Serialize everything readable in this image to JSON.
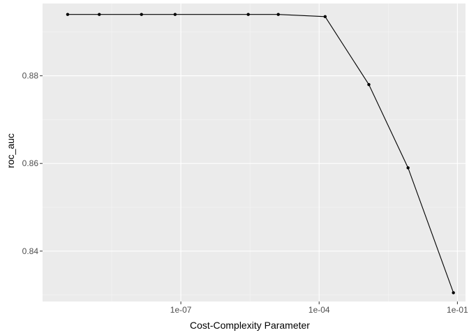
{
  "chart_data": {
    "type": "line",
    "xlabel": "Cost-Complexity Parameter",
    "ylabel": "roc_auc",
    "x_scale": "log10",
    "xlim": [
      1e-10,
      0.15
    ],
    "ylim": [
      0.8285,
      0.8965
    ],
    "x_ticks": [
      {
        "value": 1e-07,
        "label": "1e-07"
      },
      {
        "value": 0.0001,
        "label": "1e-04"
      },
      {
        "value": 0.1,
        "label": "1e-01"
      }
    ],
    "y_ticks": [
      {
        "value": 0.84,
        "label": "0.84"
      },
      {
        "value": 0.86,
        "label": "0.86"
      },
      {
        "value": 0.88,
        "label": "0.88"
      }
    ],
    "grid": true,
    "colors": {
      "panel_background": "#ebebeb",
      "grid_major": "#ffffff",
      "grid_minor": "#f5f5f5",
      "line": "#000000",
      "point": "#000000",
      "tick_label": "#4d4d4d",
      "axis_title": "#000000"
    },
    "series": [
      {
        "x": [
          3.5e-10,
          1.7e-09,
          1.4e-08,
          7.5e-08,
          2.9e-06,
          1.3e-05,
          0.000135,
          0.0012,
          0.0085,
          0.082
        ],
        "y": [
          0.894,
          0.894,
          0.894,
          0.894,
          0.894,
          0.894,
          0.8935,
          0.878,
          0.859,
          0.8305
        ]
      }
    ]
  }
}
